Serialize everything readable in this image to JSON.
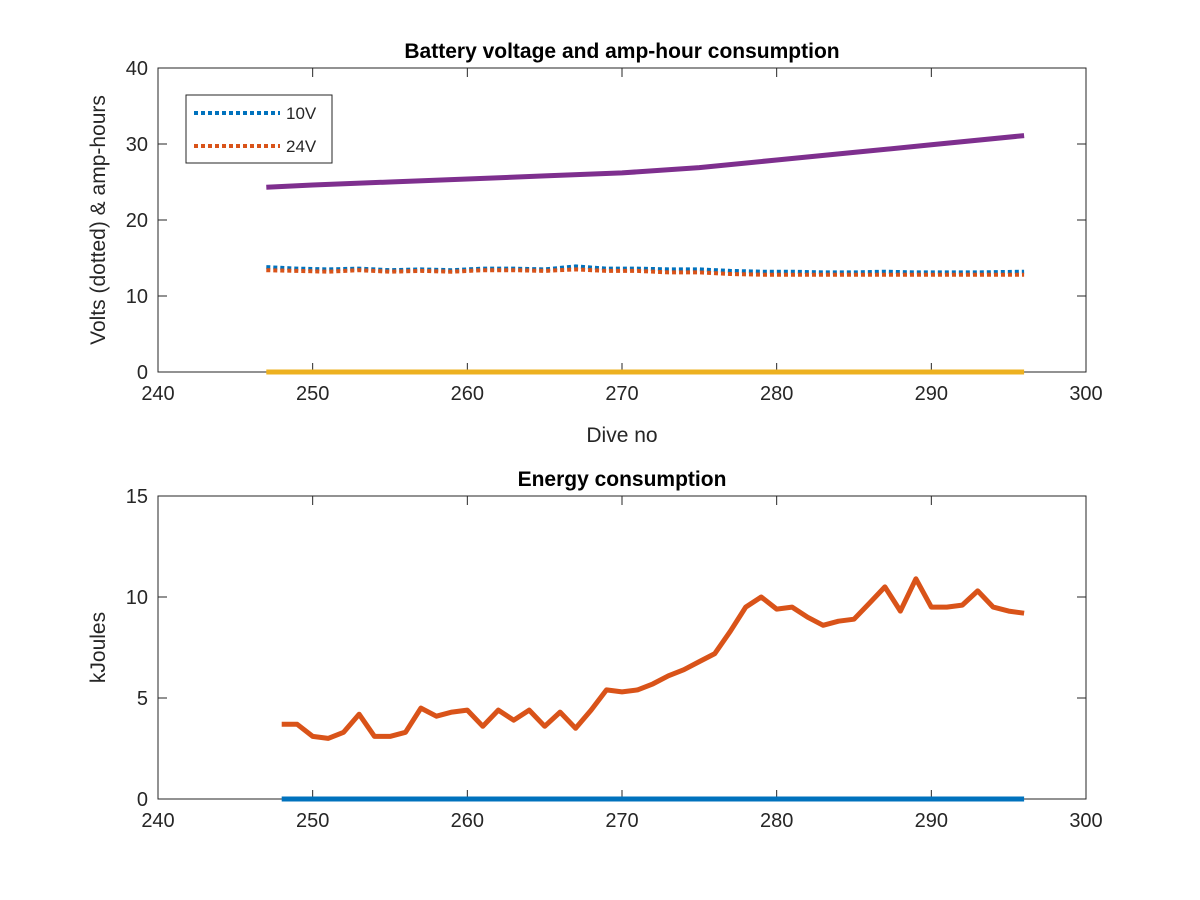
{
  "colors": {
    "blue": "#0072BD",
    "orange": "#D95319",
    "yellow": "#EDB120",
    "purple": "#7E2F8E",
    "axis": "#262626"
  },
  "chart_data": [
    {
      "type": "line",
      "title": "Battery voltage and amp-hour consumption",
      "xlabel": "Dive no",
      "ylabel": "Volts (dotted) & amp-hours",
      "xlim": [
        240,
        300
      ],
      "ylim": [
        0,
        40
      ],
      "xticks": [
        "240",
        "250",
        "260",
        "270",
        "280",
        "290",
        "300"
      ],
      "yticks": [
        "0",
        "10",
        "20",
        "30",
        "40"
      ],
      "grid": false,
      "legend": {
        "placement": "top-left",
        "entries": [
          "10V",
          "24V"
        ]
      },
      "series": [
        {
          "name": "10V",
          "style": "dotted",
          "color": "#0072BD",
          "x": [
            247,
            249,
            251,
            253,
            255,
            257,
            259,
            261,
            263,
            265,
            267,
            269,
            271,
            273,
            275,
            277,
            279,
            281,
            283,
            285,
            287,
            289,
            291,
            293,
            296
          ],
          "y": [
            13.8,
            13.6,
            13.5,
            13.6,
            13.4,
            13.5,
            13.4,
            13.6,
            13.6,
            13.5,
            13.9,
            13.6,
            13.6,
            13.5,
            13.5,
            13.3,
            13.2,
            13.2,
            13.1,
            13.1,
            13.2,
            13.1,
            13.1,
            13.1,
            13.2
          ]
        },
        {
          "name": "24V",
          "style": "dotted",
          "color": "#D95319",
          "x": [
            247,
            249,
            251,
            253,
            255,
            257,
            259,
            261,
            263,
            265,
            267,
            269,
            271,
            273,
            275,
            277,
            279,
            281,
            283,
            285,
            287,
            289,
            291,
            293,
            296
          ],
          "y": [
            13.4,
            13.3,
            13.2,
            13.4,
            13.2,
            13.3,
            13.2,
            13.4,
            13.4,
            13.3,
            13.5,
            13.3,
            13.3,
            13.1,
            13.1,
            12.9,
            12.8,
            12.8,
            12.8,
            12.8,
            12.8,
            12.8,
            12.8,
            12.8,
            12.8
          ]
        },
        {
          "style": "solid",
          "color": "#EDB120",
          "x": [
            247,
            296
          ],
          "y": [
            0,
            0
          ]
        },
        {
          "style": "solid",
          "color": "#7E2F8E",
          "x": [
            247,
            250,
            255,
            260,
            265,
            270,
            275,
            280,
            285,
            290,
            296
          ],
          "y": [
            24.3,
            24.6,
            25.0,
            25.4,
            25.8,
            26.2,
            26.9,
            27.9,
            28.9,
            29.9,
            31.1
          ]
        }
      ]
    },
    {
      "type": "line",
      "title": "Energy consumption",
      "xlabel": "",
      "ylabel": "kJoules",
      "xlim": [
        240,
        300
      ],
      "ylim": [
        0,
        15
      ],
      "xticks": [
        "240",
        "250",
        "260",
        "270",
        "280",
        "290",
        "300"
      ],
      "yticks": [
        "0",
        "5",
        "10",
        "15"
      ],
      "grid": false,
      "series": [
        {
          "style": "solid",
          "color": "#0072BD",
          "x": [
            248,
            296
          ],
          "y": [
            0,
            0
          ]
        },
        {
          "style": "solid",
          "color": "#D95319",
          "x": [
            248,
            249,
            250,
            251,
            252,
            253,
            254,
            255,
            256,
            257,
            258,
            259,
            260,
            261,
            262,
            263,
            264,
            265,
            266,
            267,
            268,
            269,
            270,
            271,
            272,
            273,
            274,
            275,
            276,
            277,
            278,
            279,
            280,
            281,
            282,
            283,
            284,
            285,
            286,
            287,
            288,
            289,
            290,
            291,
            292,
            293,
            294,
            295,
            296
          ],
          "y": [
            3.7,
            3.7,
            3.1,
            3.0,
            3.3,
            4.2,
            3.1,
            3.1,
            3.3,
            4.5,
            4.1,
            4.3,
            4.4,
            3.6,
            4.4,
            3.9,
            4.4,
            3.6,
            4.3,
            3.5,
            4.4,
            5.4,
            5.3,
            5.4,
            5.7,
            6.1,
            6.4,
            6.8,
            7.2,
            8.3,
            9.5,
            10.0,
            9.4,
            9.5,
            9.0,
            8.6,
            8.8,
            8.9,
            9.7,
            10.5,
            9.3,
            10.9,
            9.5,
            9.5,
            9.6,
            10.3,
            9.5,
            9.3,
            9.2
          ]
        }
      ]
    }
  ]
}
